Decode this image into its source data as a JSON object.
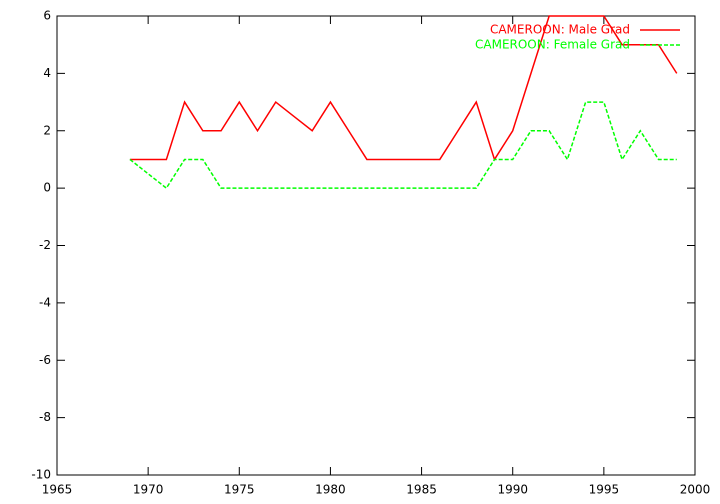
{
  "chart_data": {
    "type": "line",
    "x": [
      1969,
      1970,
      1971,
      1972,
      1973,
      1974,
      1975,
      1976,
      1977,
      1978,
      1979,
      1980,
      1981,
      1982,
      1983,
      1984,
      1985,
      1986,
      1987,
      1988,
      1989,
      1990,
      1991,
      1992,
      1993,
      1994,
      1995,
      1996,
      1997,
      1998,
      1999
    ],
    "series": [
      {
        "name": "CAMEROON: Male Grad",
        "color": "#ff0000",
        "dash": false,
        "values": [
          1,
          1,
          1,
          3,
          2,
          2,
          3,
          2,
          3,
          2.5,
          2,
          3,
          2,
          1,
          1,
          1,
          1,
          1,
          2,
          3,
          1,
          2,
          4,
          6,
          6,
          6,
          6,
          5,
          5,
          5,
          4
        ]
      },
      {
        "name": "CAMEROON: Female Grad",
        "color": "#00ff00",
        "dash": true,
        "values": [
          1,
          0.5,
          0,
          1,
          1,
          0,
          0,
          0,
          0,
          0,
          0,
          0,
          0,
          0,
          0,
          0,
          0,
          0,
          0,
          0,
          1,
          1,
          2,
          2,
          1,
          3,
          3,
          1,
          2,
          1,
          1
        ]
      }
    ],
    "xlim": [
      1965,
      2000
    ],
    "xticks": [
      1965,
      1970,
      1975,
      1980,
      1985,
      1990,
      1995,
      2000
    ],
    "ylim": [
      -10,
      6
    ],
    "yticks": [
      -10,
      -8,
      -6,
      -4,
      -2,
      0,
      2,
      4,
      6
    ],
    "legend": "top-right"
  }
}
